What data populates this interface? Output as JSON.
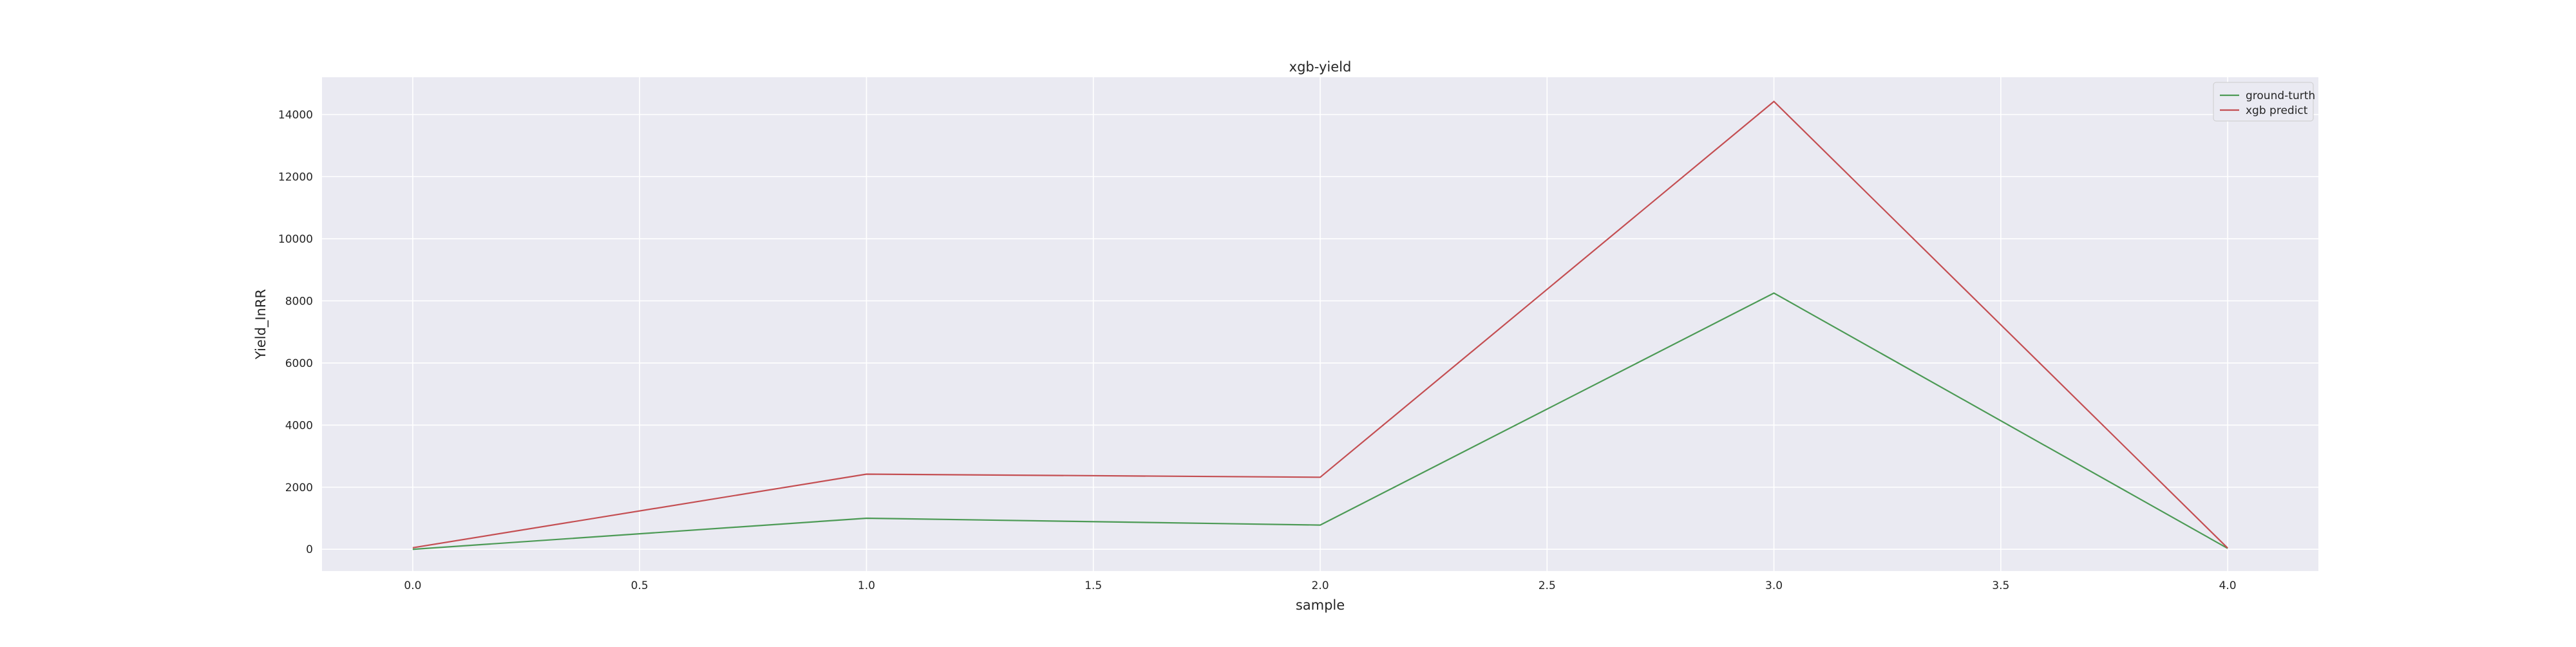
{
  "chart_data": {
    "type": "line",
    "title": "xgb-yield",
    "xlabel": "sample",
    "ylabel": "Yield_InRR",
    "x": [
      0.0,
      1.0,
      2.0,
      3.0,
      4.0
    ],
    "series": [
      {
        "name": "ground-turth",
        "color": "#4c9a55",
        "values": [
          0,
          1000,
          780,
          8250,
          30
        ]
      },
      {
        "name": "xgb predict",
        "color": "#c44e52",
        "values": [
          50,
          2420,
          2320,
          14420,
          40
        ]
      }
    ],
    "xlim": [
      -0.2,
      4.2
    ],
    "ylim": [
      -700,
      15200
    ],
    "xticks": [
      0.0,
      0.5,
      1.0,
      1.5,
      2.0,
      2.5,
      3.0,
      3.5,
      4.0
    ],
    "xtick_labels": [
      "0.0",
      "0.5",
      "1.0",
      "1.5",
      "2.0",
      "2.5",
      "3.0",
      "3.5",
      "4.0"
    ],
    "yticks": [
      0,
      2000,
      4000,
      6000,
      8000,
      10000,
      12000,
      14000
    ],
    "ytick_labels": [
      "0",
      "2000",
      "4000",
      "6000",
      "8000",
      "10000",
      "12000",
      "14000"
    ],
    "grid": true,
    "legend_position": "top-right",
    "background": "#eaeaf2",
    "grid_color": "#ffffff"
  }
}
